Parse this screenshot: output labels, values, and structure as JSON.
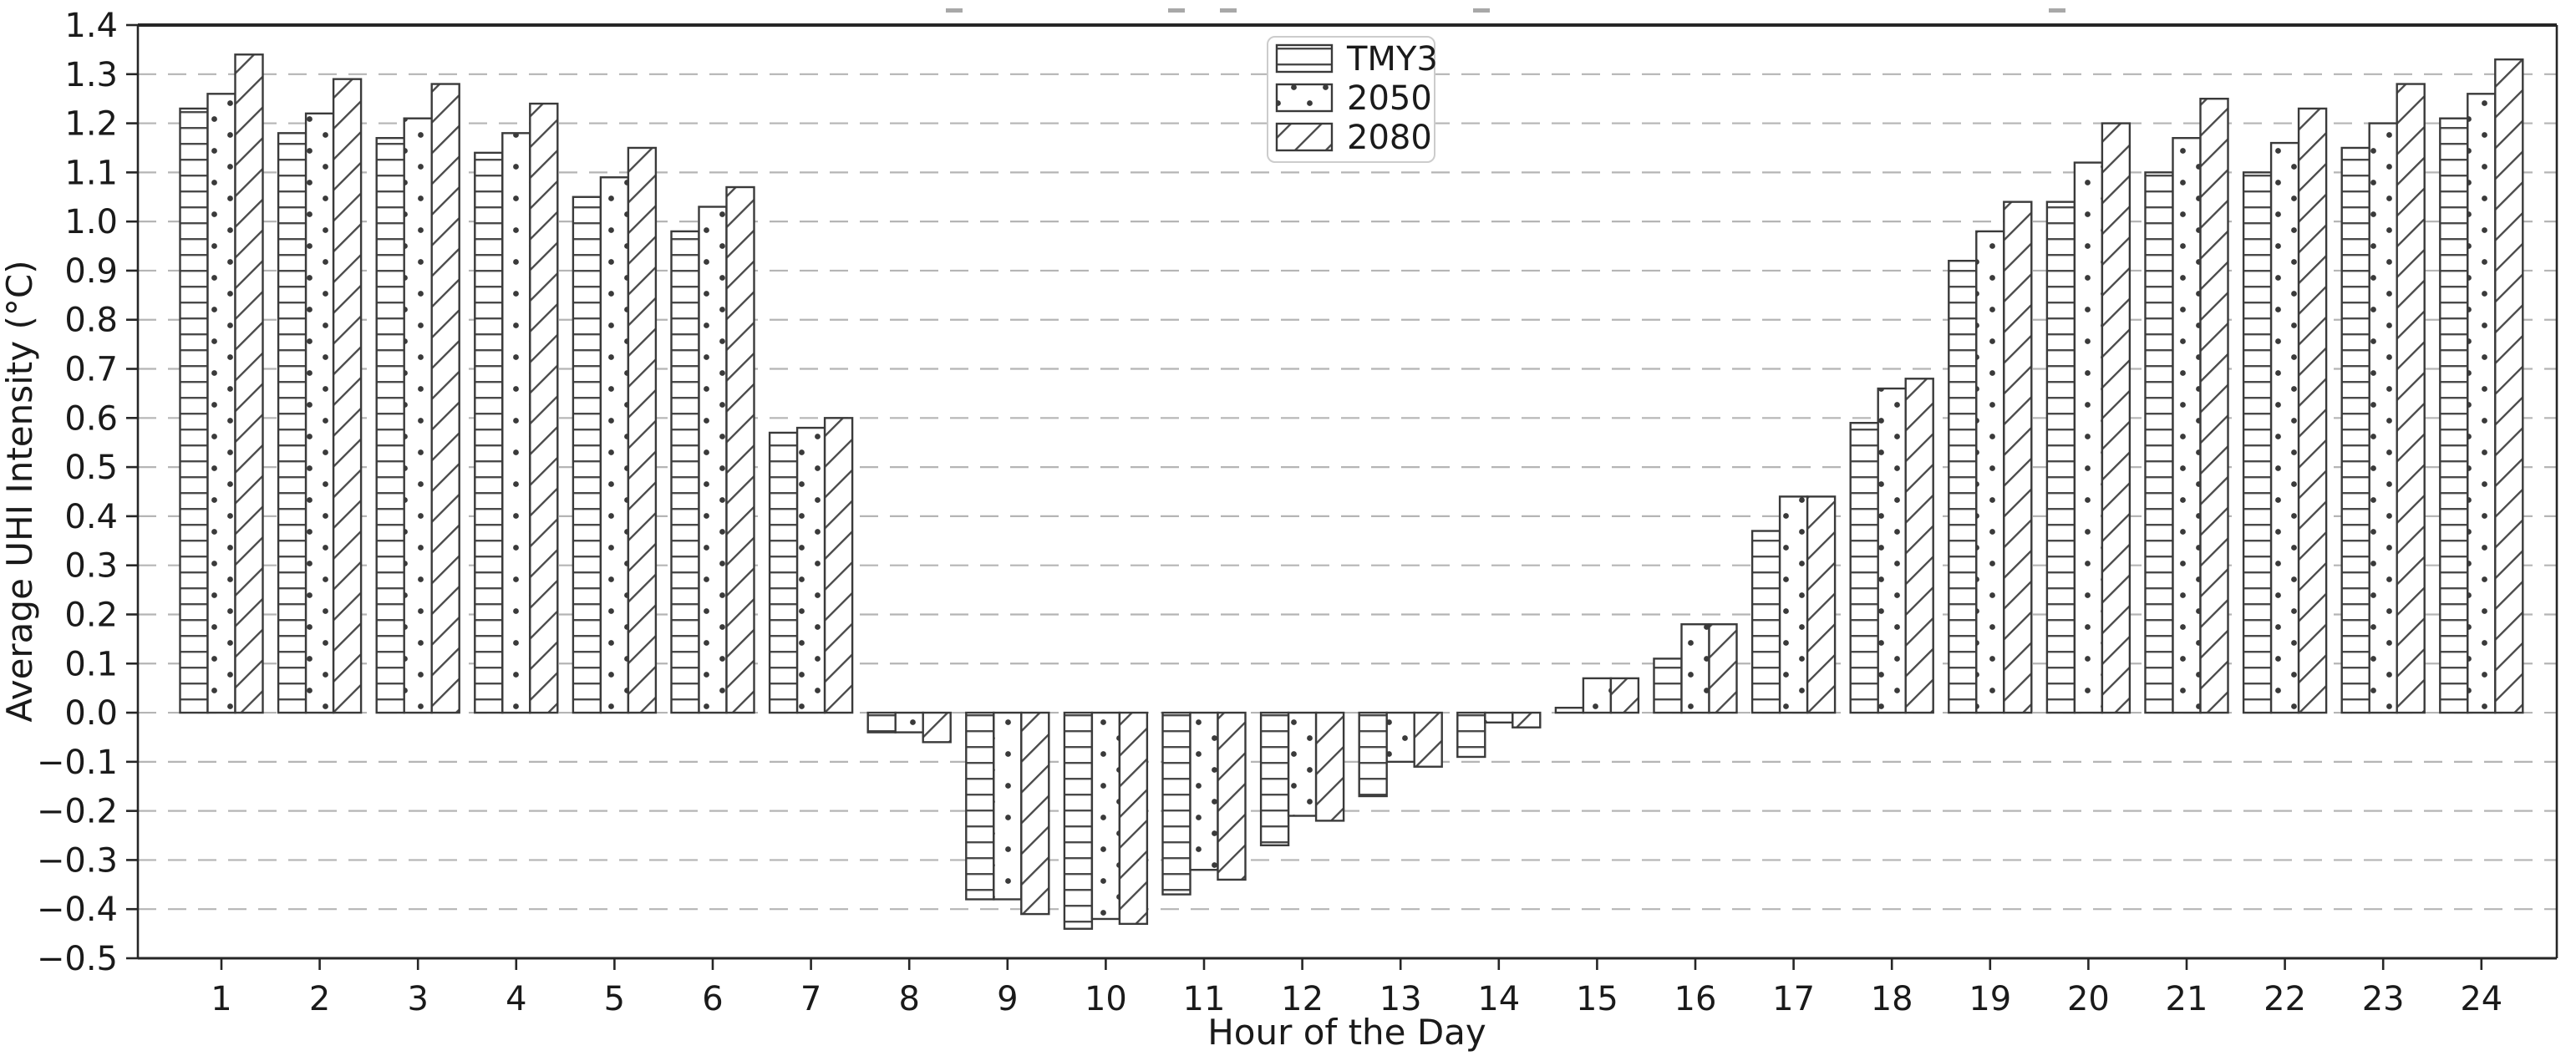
{
  "figure": {
    "background_color": "#ffffff",
    "cropped_title_marks": {
      "y": 10,
      "x_positions": [
        1132,
        1398,
        1460,
        1763,
        2452
      ]
    }
  },
  "chart_data": {
    "type": "bar",
    "title": "",
    "xlabel": "Hour of the Day",
    "ylabel": "Average UHI Intensity (°C)",
    "categories": [
      1,
      2,
      3,
      4,
      5,
      6,
      7,
      8,
      9,
      10,
      11,
      12,
      13,
      14,
      15,
      16,
      17,
      18,
      19,
      20,
      21,
      22,
      23,
      24
    ],
    "series": [
      {
        "name": "TMY3",
        "hatch": "horizontal-lines",
        "values": [
          1.23,
          1.18,
          1.17,
          1.14,
          1.05,
          0.98,
          0.57,
          -0.04,
          -0.38,
          -0.44,
          -0.37,
          -0.27,
          -0.17,
          -0.09,
          0.01,
          0.11,
          0.37,
          0.59,
          0.92,
          1.04,
          1.1,
          1.1,
          1.15,
          1.21
        ]
      },
      {
        "name": "2050",
        "hatch": "dots",
        "values": [
          1.26,
          1.22,
          1.21,
          1.18,
          1.09,
          1.03,
          0.58,
          -0.04,
          -0.38,
          -0.42,
          -0.32,
          -0.21,
          -0.1,
          -0.02,
          0.07,
          0.18,
          0.44,
          0.66,
          0.98,
          1.12,
          1.17,
          1.16,
          1.2,
          1.26
        ]
      },
      {
        "name": "2080",
        "hatch": "diagonal-lines",
        "values": [
          1.34,
          1.29,
          1.28,
          1.24,
          1.15,
          1.07,
          0.6,
          -0.06,
          -0.41,
          -0.43,
          -0.34,
          -0.22,
          -0.11,
          -0.03,
          0.07,
          0.18,
          0.44,
          0.68,
          1.04,
          1.2,
          1.25,
          1.23,
          1.28,
          1.33
        ]
      }
    ],
    "ylim": [
      -0.5,
      1.4
    ],
    "yticks": [
      {
        "value": 1.4,
        "label": "1.4"
      },
      {
        "value": 1.3,
        "label": "1.3"
      },
      {
        "value": 1.2,
        "label": "1.2"
      },
      {
        "value": 1.1,
        "label": "1.1"
      },
      {
        "value": 1.0,
        "label": "1.0"
      },
      {
        "value": 0.9,
        "label": "0.9"
      },
      {
        "value": 0.8,
        "label": "0.8"
      },
      {
        "value": 0.7,
        "label": "0.7"
      },
      {
        "value": 0.6,
        "label": "0.6"
      },
      {
        "value": 0.5,
        "label": "0.5"
      },
      {
        "value": 0.4,
        "label": "0.4"
      },
      {
        "value": 0.3,
        "label": "0.3"
      },
      {
        "value": 0.2,
        "label": "0.2"
      },
      {
        "value": 0.1,
        "label": "0.1"
      },
      {
        "value": 0.0,
        "label": "0.0"
      },
      {
        "value": -0.1,
        "label": "−0.1"
      },
      {
        "value": -0.2,
        "label": "−0.2"
      },
      {
        "value": -0.3,
        "label": "−0.3"
      },
      {
        "value": -0.4,
        "label": "−0.4"
      },
      {
        "value": -0.5,
        "label": "−0.5"
      }
    ],
    "grid": "horizontal-dashed",
    "legend_position": "upper-center",
    "style": {
      "bar_fill": "#ffffff",
      "bar_edge_color": "#3a3a3a",
      "hatch_color": "#4a4a4a",
      "gridline_color": "#b5b5b5",
      "axis_color": "#262626",
      "text_color": "#1a1a1a",
      "legend_border_color": "#cccccc"
    }
  }
}
